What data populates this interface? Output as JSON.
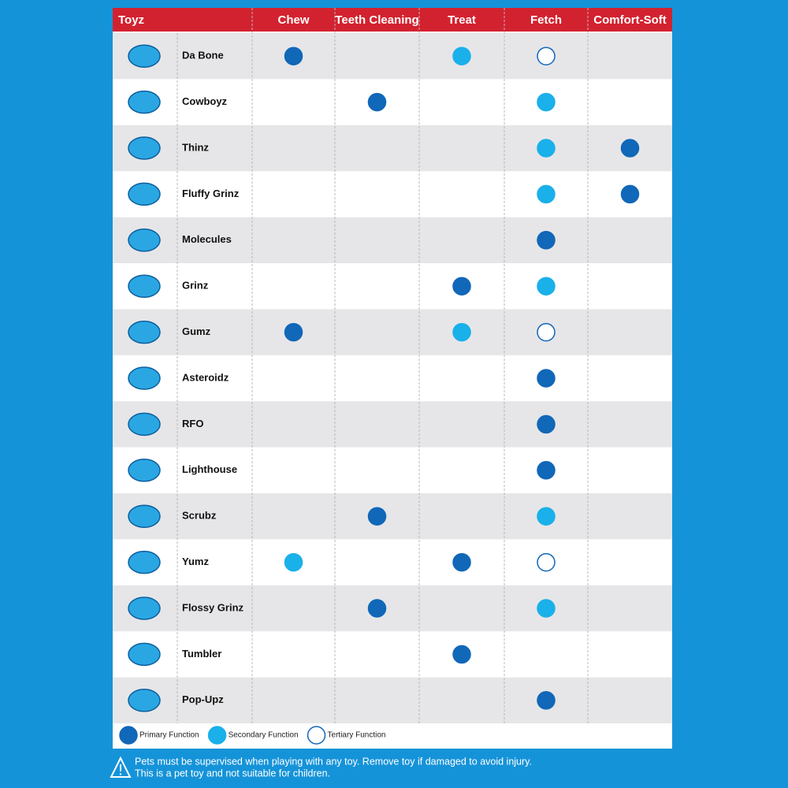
{
  "table": {
    "columns": [
      "Toyz",
      "Chew",
      "Teeth Cleaning",
      "Treat",
      "Fetch",
      "Comfort-Soft"
    ],
    "rows": [
      {
        "name": "Da Bone",
        "cells": [
          0,
          null,
          1,
          2,
          null
        ]
      },
      {
        "name": "Cowboyz",
        "cells": [
          null,
          0,
          null,
          1,
          null
        ]
      },
      {
        "name": "Thinz",
        "cells": [
          null,
          null,
          null,
          1,
          0
        ]
      },
      {
        "name": "Fluffy Grinz",
        "cells": [
          null,
          null,
          null,
          1,
          0
        ]
      },
      {
        "name": "Molecules",
        "cells": [
          null,
          null,
          null,
          0,
          null
        ]
      },
      {
        "name": "Grinz",
        "cells": [
          null,
          null,
          0,
          1,
          null
        ]
      },
      {
        "name": "Gumz",
        "cells": [
          0,
          null,
          1,
          2,
          null
        ]
      },
      {
        "name": "Asteroidz",
        "cells": [
          null,
          null,
          null,
          0,
          null
        ]
      },
      {
        "name": "RFO",
        "cells": [
          null,
          null,
          null,
          0,
          null
        ]
      },
      {
        "name": "Lighthouse",
        "cells": [
          null,
          null,
          null,
          0,
          null
        ]
      },
      {
        "name": "Scrubz",
        "cells": [
          null,
          0,
          null,
          1,
          null
        ]
      },
      {
        "name": "Yumz",
        "cells": [
          1,
          null,
          0,
          2,
          null
        ]
      },
      {
        "name": "Flossy Grinz",
        "cells": [
          null,
          0,
          null,
          1,
          null
        ]
      },
      {
        "name": "Tumbler",
        "cells": [
          null,
          null,
          0,
          null,
          null
        ]
      },
      {
        "name": "Pop-Upz",
        "cells": [
          null,
          null,
          null,
          0,
          null
        ]
      }
    ]
  },
  "legend": [
    {
      "label": "Primary Function",
      "color": "#1167b8",
      "fill": "#1167b8"
    },
    {
      "label": "Secondary Function",
      "color": "#1ab0ea",
      "fill": "#1ab0ea"
    },
    {
      "label": "Tertiary Function",
      "color": "#1167b8",
      "fill": "#ffffff"
    }
  ],
  "warning": [
    "Pets must be supervised when playing with any toy. Remove toy if damaged to avoid injury.",
    "This is a pet toy and not suitable for children."
  ]
}
